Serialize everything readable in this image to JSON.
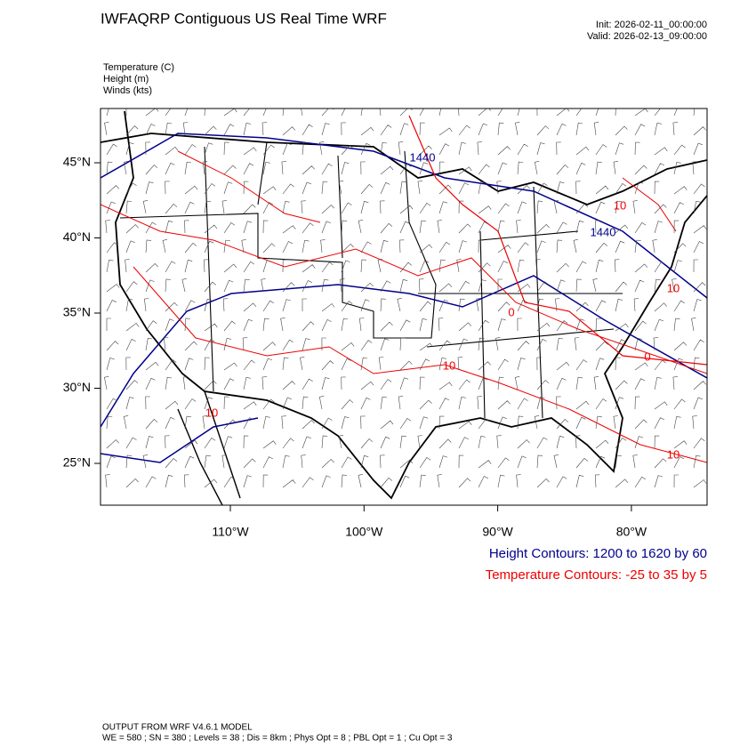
{
  "header": {
    "title": "IWFAQRP Contiguous US Real Time WRF",
    "init": "Init: 2026-02-11_00:00:00",
    "valid": "Valid: 2026-02-13_09:00:00"
  },
  "fields": [
    "Temperature   (C)",
    "Height   (m)",
    "Winds   (kts)"
  ],
  "map": {
    "lat_ticks": [
      {
        "value": 45,
        "label": "45°N"
      },
      {
        "value": 40,
        "label": "40°N"
      },
      {
        "value": 35,
        "label": "35°N"
      },
      {
        "value": 30,
        "label": "30°N"
      },
      {
        "value": 25,
        "label": "25°N"
      }
    ],
    "lon_ticks": [
      {
        "value": -110,
        "label": "110°W"
      },
      {
        "value": -100,
        "label": "100°W"
      },
      {
        "value": -90,
        "label": "90°W"
      },
      {
        "value": -80,
        "label": "80°W"
      }
    ],
    "height_labels": [
      "1440",
      "1440"
    ],
    "temperature_labels": [
      "10",
      "10",
      "0",
      "10",
      "0",
      "10",
      "10"
    ]
  },
  "legend": {
    "height": "Height Contours: 1200 to 1620 by 60",
    "temperature": "Temperature Contours: -25 to 35 by 5"
  },
  "footer": {
    "line1": "OUTPUT FROM WRF V4.6.1 MODEL",
    "line2": "WE = 580 ; SN = 380 ; Levels = 38 ; Dis = 8km ; Phys Opt = 8 ; PBL Opt = 1 ; Cu Opt = 3"
  }
}
